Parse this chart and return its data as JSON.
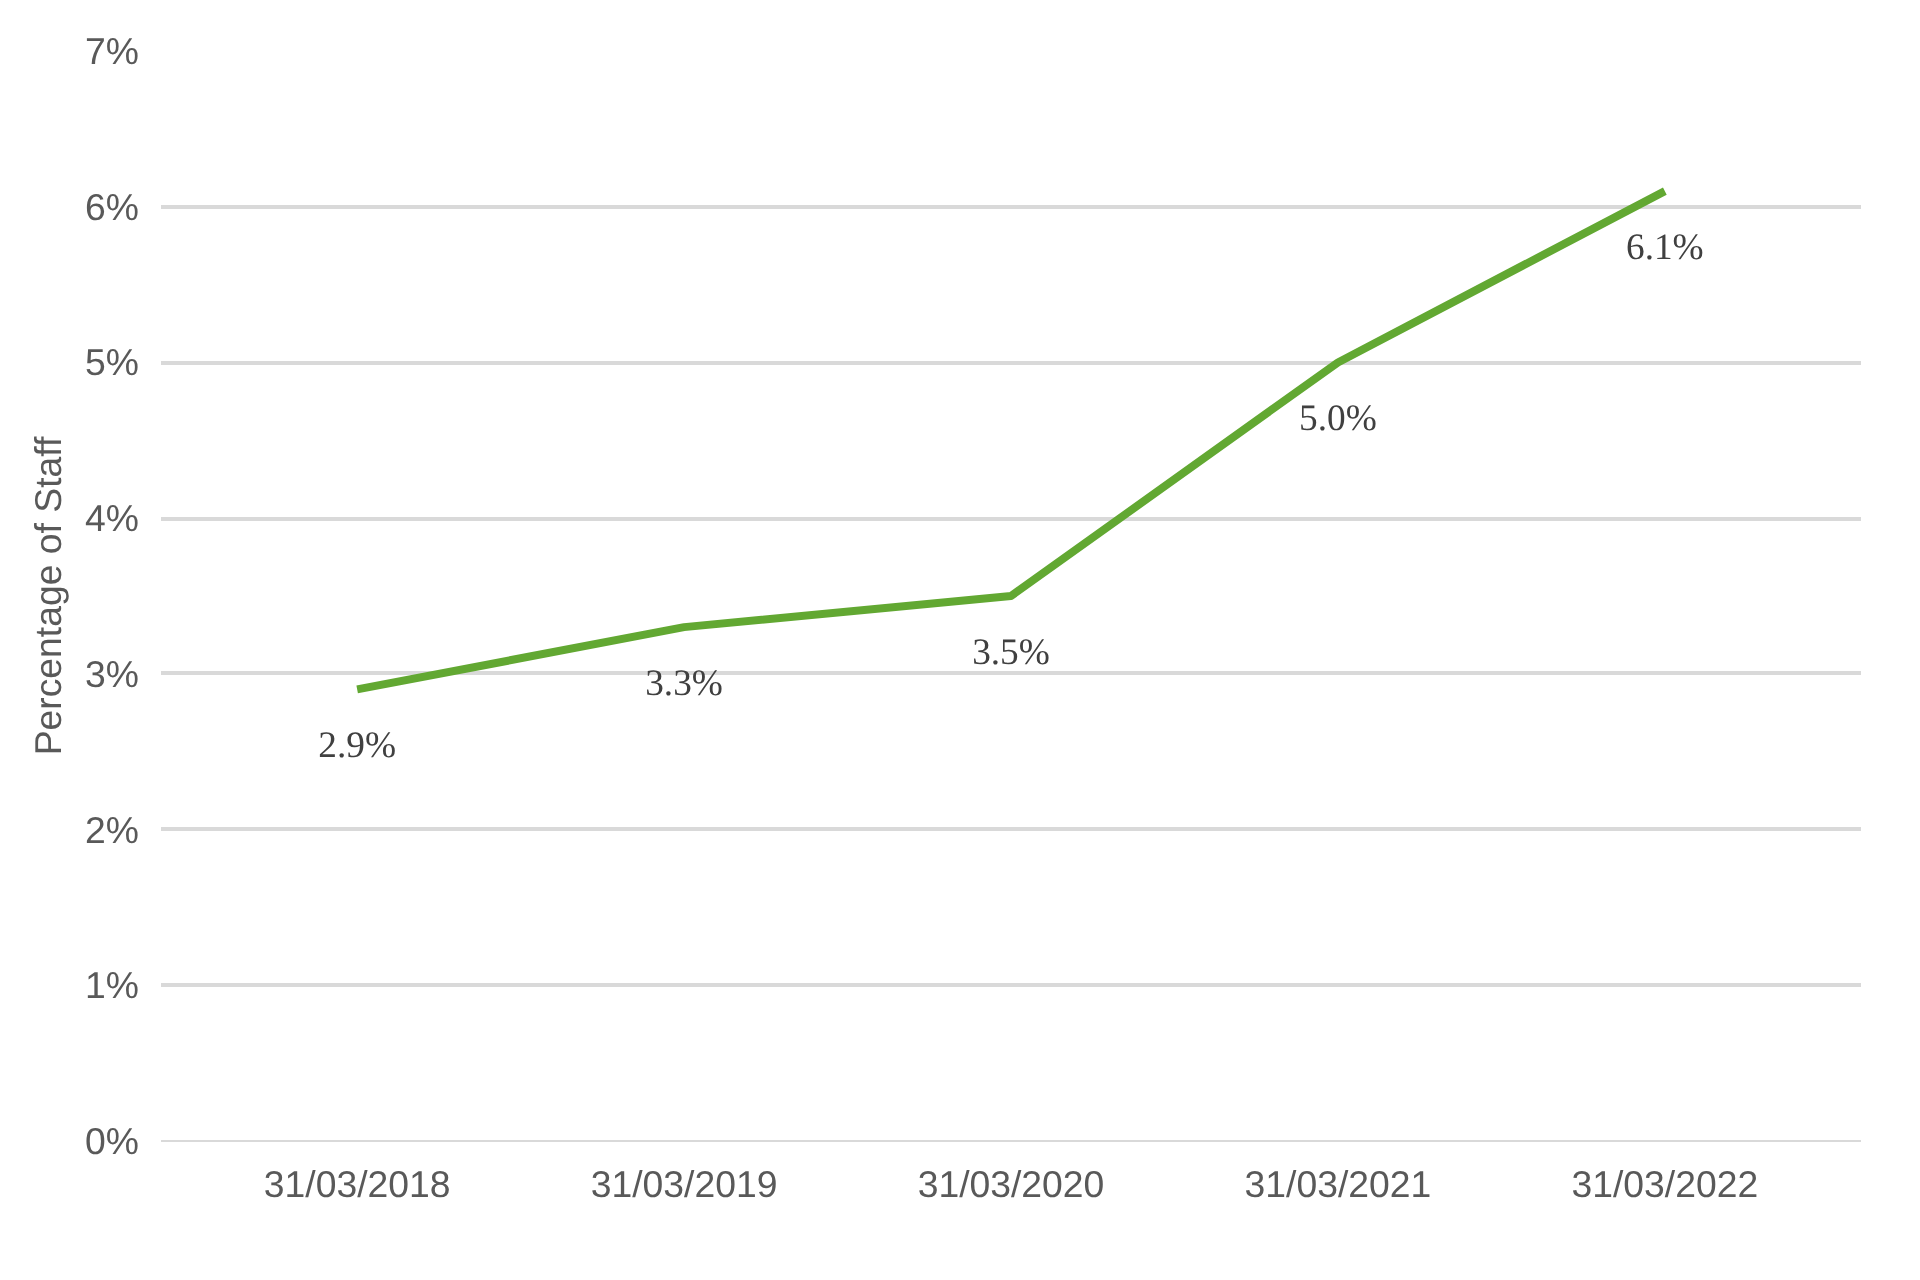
{
  "chart_data": {
    "type": "line",
    "ylabel": "Percentage of Staff",
    "categories": [
      "31/03/2018",
      "31/03/2019",
      "31/03/2020",
      "31/03/2021",
      "31/03/2022"
    ],
    "series": [
      {
        "color": "#62a832",
        "values": [
          2.9,
          3.3,
          3.5,
          5.0,
          6.1
        ],
        "value_labels": [
          "2.9%",
          "3.3%",
          "3.5%",
          "5.0%",
          "6.1%"
        ]
      }
    ],
    "ylim": [
      0,
      7
    ],
    "yticks": [
      {
        "value": 0,
        "label": "0%"
      },
      {
        "value": 1,
        "label": "1%"
      },
      {
        "value": 2,
        "label": "2%"
      },
      {
        "value": 3,
        "label": "3%"
      },
      {
        "value": 4,
        "label": "4%"
      },
      {
        "value": 5,
        "label": "5%"
      },
      {
        "value": 6,
        "label": "6%"
      },
      {
        "value": 7,
        "label": "7%"
      }
    ],
    "grid": "y",
    "marker": "none",
    "line_style": "solid"
  }
}
